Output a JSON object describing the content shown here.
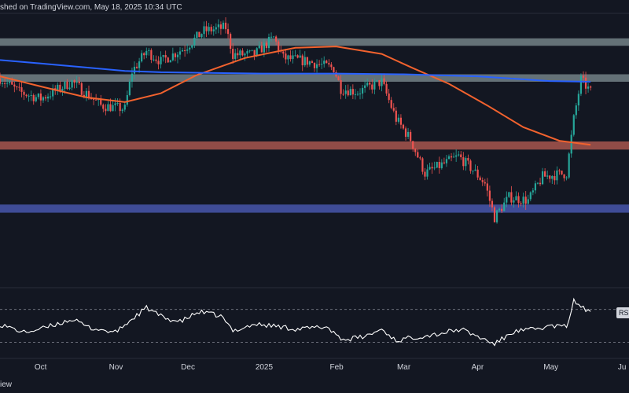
{
  "header": {
    "text": "shed on TradingView.com, May 18, 2025 10:34 UTC"
  },
  "footer": {
    "brand": "iew"
  },
  "rsi_badge": "RSI",
  "colors": {
    "background": "#131722",
    "bull": "#26a69a",
    "bear": "#ef5350",
    "ma_short": "#f2622e",
    "ma_long": "#2962ff",
    "zone_resistance_top": "#7b8a8f",
    "zone_resistance_mid": "#7b8a8f",
    "zone_support_red": "#b55b52",
    "zone_support_blue": "#4c5bb8",
    "rsi_line": "#ffffff"
  },
  "chart_data": {
    "type": "candlestick",
    "title": "",
    "x_axis": {
      "type": "time",
      "start": "2024-09-14",
      "end": "2025-06-03",
      "tick_labels": [
        {
          "label": "Oct",
          "date": "2024-10-01"
        },
        {
          "label": "Nov",
          "date": "2024-11-01"
        },
        {
          "label": "Dec",
          "date": "2024-12-01"
        },
        {
          "label": "2025",
          "date": "2025-01-01"
        },
        {
          "label": "Feb",
          "date": "2025-02-01"
        },
        {
          "label": "Mar",
          "date": "2025-03-01"
        },
        {
          "label": "Apr",
          "date": "2025-04-01"
        },
        {
          "label": "May",
          "date": "2025-05-01"
        },
        {
          "label": "Ju",
          "date": "2025-06-01"
        }
      ]
    },
    "price_range": [
      73000,
      111000
    ],
    "zones": [
      {
        "name": "resistance-top",
        "low": 106800,
        "high": 107900
      },
      {
        "name": "resistance-mid",
        "low": 101500,
        "high": 102600
      },
      {
        "name": "support-red",
        "low": 91500,
        "high": 92700
      },
      {
        "name": "support-blue",
        "low": 82200,
        "high": 83400
      }
    ],
    "ohlc_keypoints": [
      [
        "2024-09-14",
        102000
      ],
      [
        "2024-09-22",
        100000
      ],
      [
        "2024-10-01",
        99000
      ],
      [
        "2024-10-14",
        101500
      ],
      [
        "2024-10-26",
        98000
      ],
      [
        "2024-11-05",
        97500
      ],
      [
        "2024-11-08",
        103000
      ],
      [
        "2024-11-14",
        106000
      ],
      [
        "2024-11-20",
        104500
      ],
      [
        "2024-11-30",
        106500
      ],
      [
        "2024-12-08",
        109000
      ],
      [
        "2024-12-17",
        109500
      ],
      [
        "2024-12-20",
        105500
      ],
      [
        "2024-12-29",
        105500
      ],
      [
        "2025-01-06",
        108000
      ],
      [
        "2025-01-10",
        105000
      ],
      [
        "2025-01-20",
        104500
      ],
      [
        "2025-01-31",
        103500
      ],
      [
        "2025-02-03",
        100500
      ],
      [
        "2025-02-10",
        100000
      ],
      [
        "2025-02-20",
        101500
      ],
      [
        "2025-02-26",
        96000
      ],
      [
        "2025-03-04",
        93000
      ],
      [
        "2025-03-10",
        88000
      ],
      [
        "2025-03-24",
        90500
      ],
      [
        "2025-03-30",
        88500
      ],
      [
        "2025-04-04",
        86500
      ],
      [
        "2025-04-08",
        81500
      ],
      [
        "2025-04-14",
        84500
      ],
      [
        "2025-04-22",
        84000
      ],
      [
        "2025-04-28",
        87500
      ],
      [
        "2025-05-08",
        88000
      ],
      [
        "2025-05-11",
        96000
      ],
      [
        "2025-05-14",
        101800
      ],
      [
        "2025-05-18",
        100000
      ]
    ],
    "series": [
      {
        "type": "line",
        "role": "moving-average-short",
        "points": [
          [
            "2024-09-14",
            102300
          ],
          [
            "2024-10-01",
            100800
          ],
          [
            "2024-10-20",
            99200
          ],
          [
            "2024-11-05",
            98500
          ],
          [
            "2024-11-20",
            99800
          ],
          [
            "2024-12-05",
            102500
          ],
          [
            "2024-12-25",
            105000
          ],
          [
            "2025-01-15",
            106500
          ],
          [
            "2025-02-01",
            106700
          ],
          [
            "2025-02-20",
            105600
          ],
          [
            "2025-03-05",
            103500
          ],
          [
            "2025-03-20",
            101200
          ],
          [
            "2025-04-05",
            98000
          ],
          [
            "2025-04-20",
            94800
          ],
          [
            "2025-05-05",
            92800
          ],
          [
            "2025-05-18",
            92200
          ]
        ]
      },
      {
        "type": "line",
        "role": "moving-average-long",
        "points": [
          [
            "2024-09-14",
            104700
          ],
          [
            "2024-10-01",
            104200
          ],
          [
            "2024-10-20",
            103600
          ],
          [
            "2024-11-05",
            103100
          ],
          [
            "2024-11-20",
            102900
          ],
          [
            "2024-12-10",
            102800
          ],
          [
            "2025-01-01",
            102700
          ],
          [
            "2025-02-01",
            102700
          ],
          [
            "2025-03-01",
            102600
          ],
          [
            "2025-04-01",
            102300
          ],
          [
            "2025-05-01",
            101600
          ],
          [
            "2025-05-18",
            101500
          ]
        ]
      }
    ],
    "rsi": {
      "range": [
        20,
        85
      ],
      "levels": [
        70,
        30
      ],
      "badge": "RSI",
      "points": [
        [
          "2024-09-14",
          52
        ],
        [
          "2024-09-24",
          42
        ],
        [
          "2024-10-02",
          47
        ],
        [
          "2024-10-14",
          58
        ],
        [
          "2024-10-21",
          48
        ],
        [
          "2024-11-01",
          42
        ],
        [
          "2024-11-14",
          72
        ],
        [
          "2024-11-21",
          60
        ],
        [
          "2024-11-28",
          55
        ],
        [
          "2024-12-06",
          67
        ],
        [
          "2024-12-15",
          62
        ],
        [
          "2024-12-20",
          44
        ],
        [
          "2024-12-29",
          52
        ],
        [
          "2025-01-06",
          50
        ],
        [
          "2025-01-16",
          46
        ],
        [
          "2025-01-28",
          49
        ],
        [
          "2025-02-04",
          33
        ],
        [
          "2025-02-13",
          37
        ],
        [
          "2025-02-20",
          46
        ],
        [
          "2025-02-26",
          32
        ],
        [
          "2025-03-05",
          36
        ],
        [
          "2025-03-15",
          40
        ],
        [
          "2025-03-25",
          46
        ],
        [
          "2025-04-01",
          37
        ],
        [
          "2025-04-08",
          28
        ],
        [
          "2025-04-16",
          43
        ],
        [
          "2025-04-25",
          46
        ],
        [
          "2025-05-02",
          50
        ],
        [
          "2025-05-08",
          49
        ],
        [
          "2025-05-11",
          80
        ],
        [
          "2025-05-14",
          74
        ],
        [
          "2025-05-18",
          65
        ]
      ]
    }
  }
}
